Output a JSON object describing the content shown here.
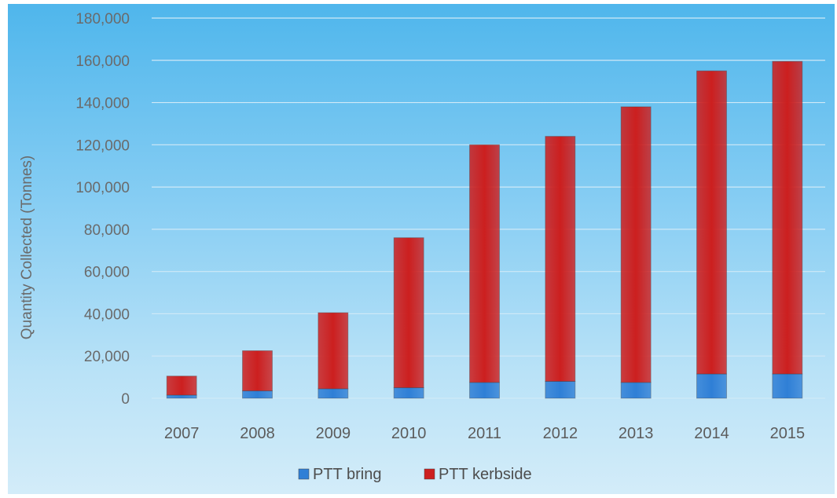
{
  "chart_data": {
    "type": "bar",
    "stacked": true,
    "categories": [
      "2007",
      "2008",
      "2009",
      "2010",
      "2011",
      "2012",
      "2013",
      "2014",
      "2015"
    ],
    "series": [
      {
        "name": "PTT bring",
        "color": "#2f7fd6",
        "values": [
          1500,
          3500,
          4500,
          5000,
          7500,
          8000,
          7500,
          11500,
          11500
        ]
      },
      {
        "name": "PTT kerbside",
        "color": "#cc1f1f",
        "values": [
          9000,
          19000,
          36000,
          71000,
          112500,
          116000,
          130500,
          143500,
          148000
        ]
      }
    ],
    "title": "",
    "xlabel": "",
    "ylabel": "Quantity Collected (Tonnes)",
    "ylim": [
      0,
      180000
    ],
    "yticks": [
      0,
      20000,
      40000,
      60000,
      80000,
      100000,
      120000,
      140000,
      160000,
      180000
    ],
    "ytick_labels": [
      "0",
      "20,000",
      "40,000",
      "60,000",
      "80,000",
      "100,000",
      "120,000",
      "140,000",
      "160,000",
      "180,000"
    ],
    "grid": true,
    "legend_position": "bottom"
  }
}
